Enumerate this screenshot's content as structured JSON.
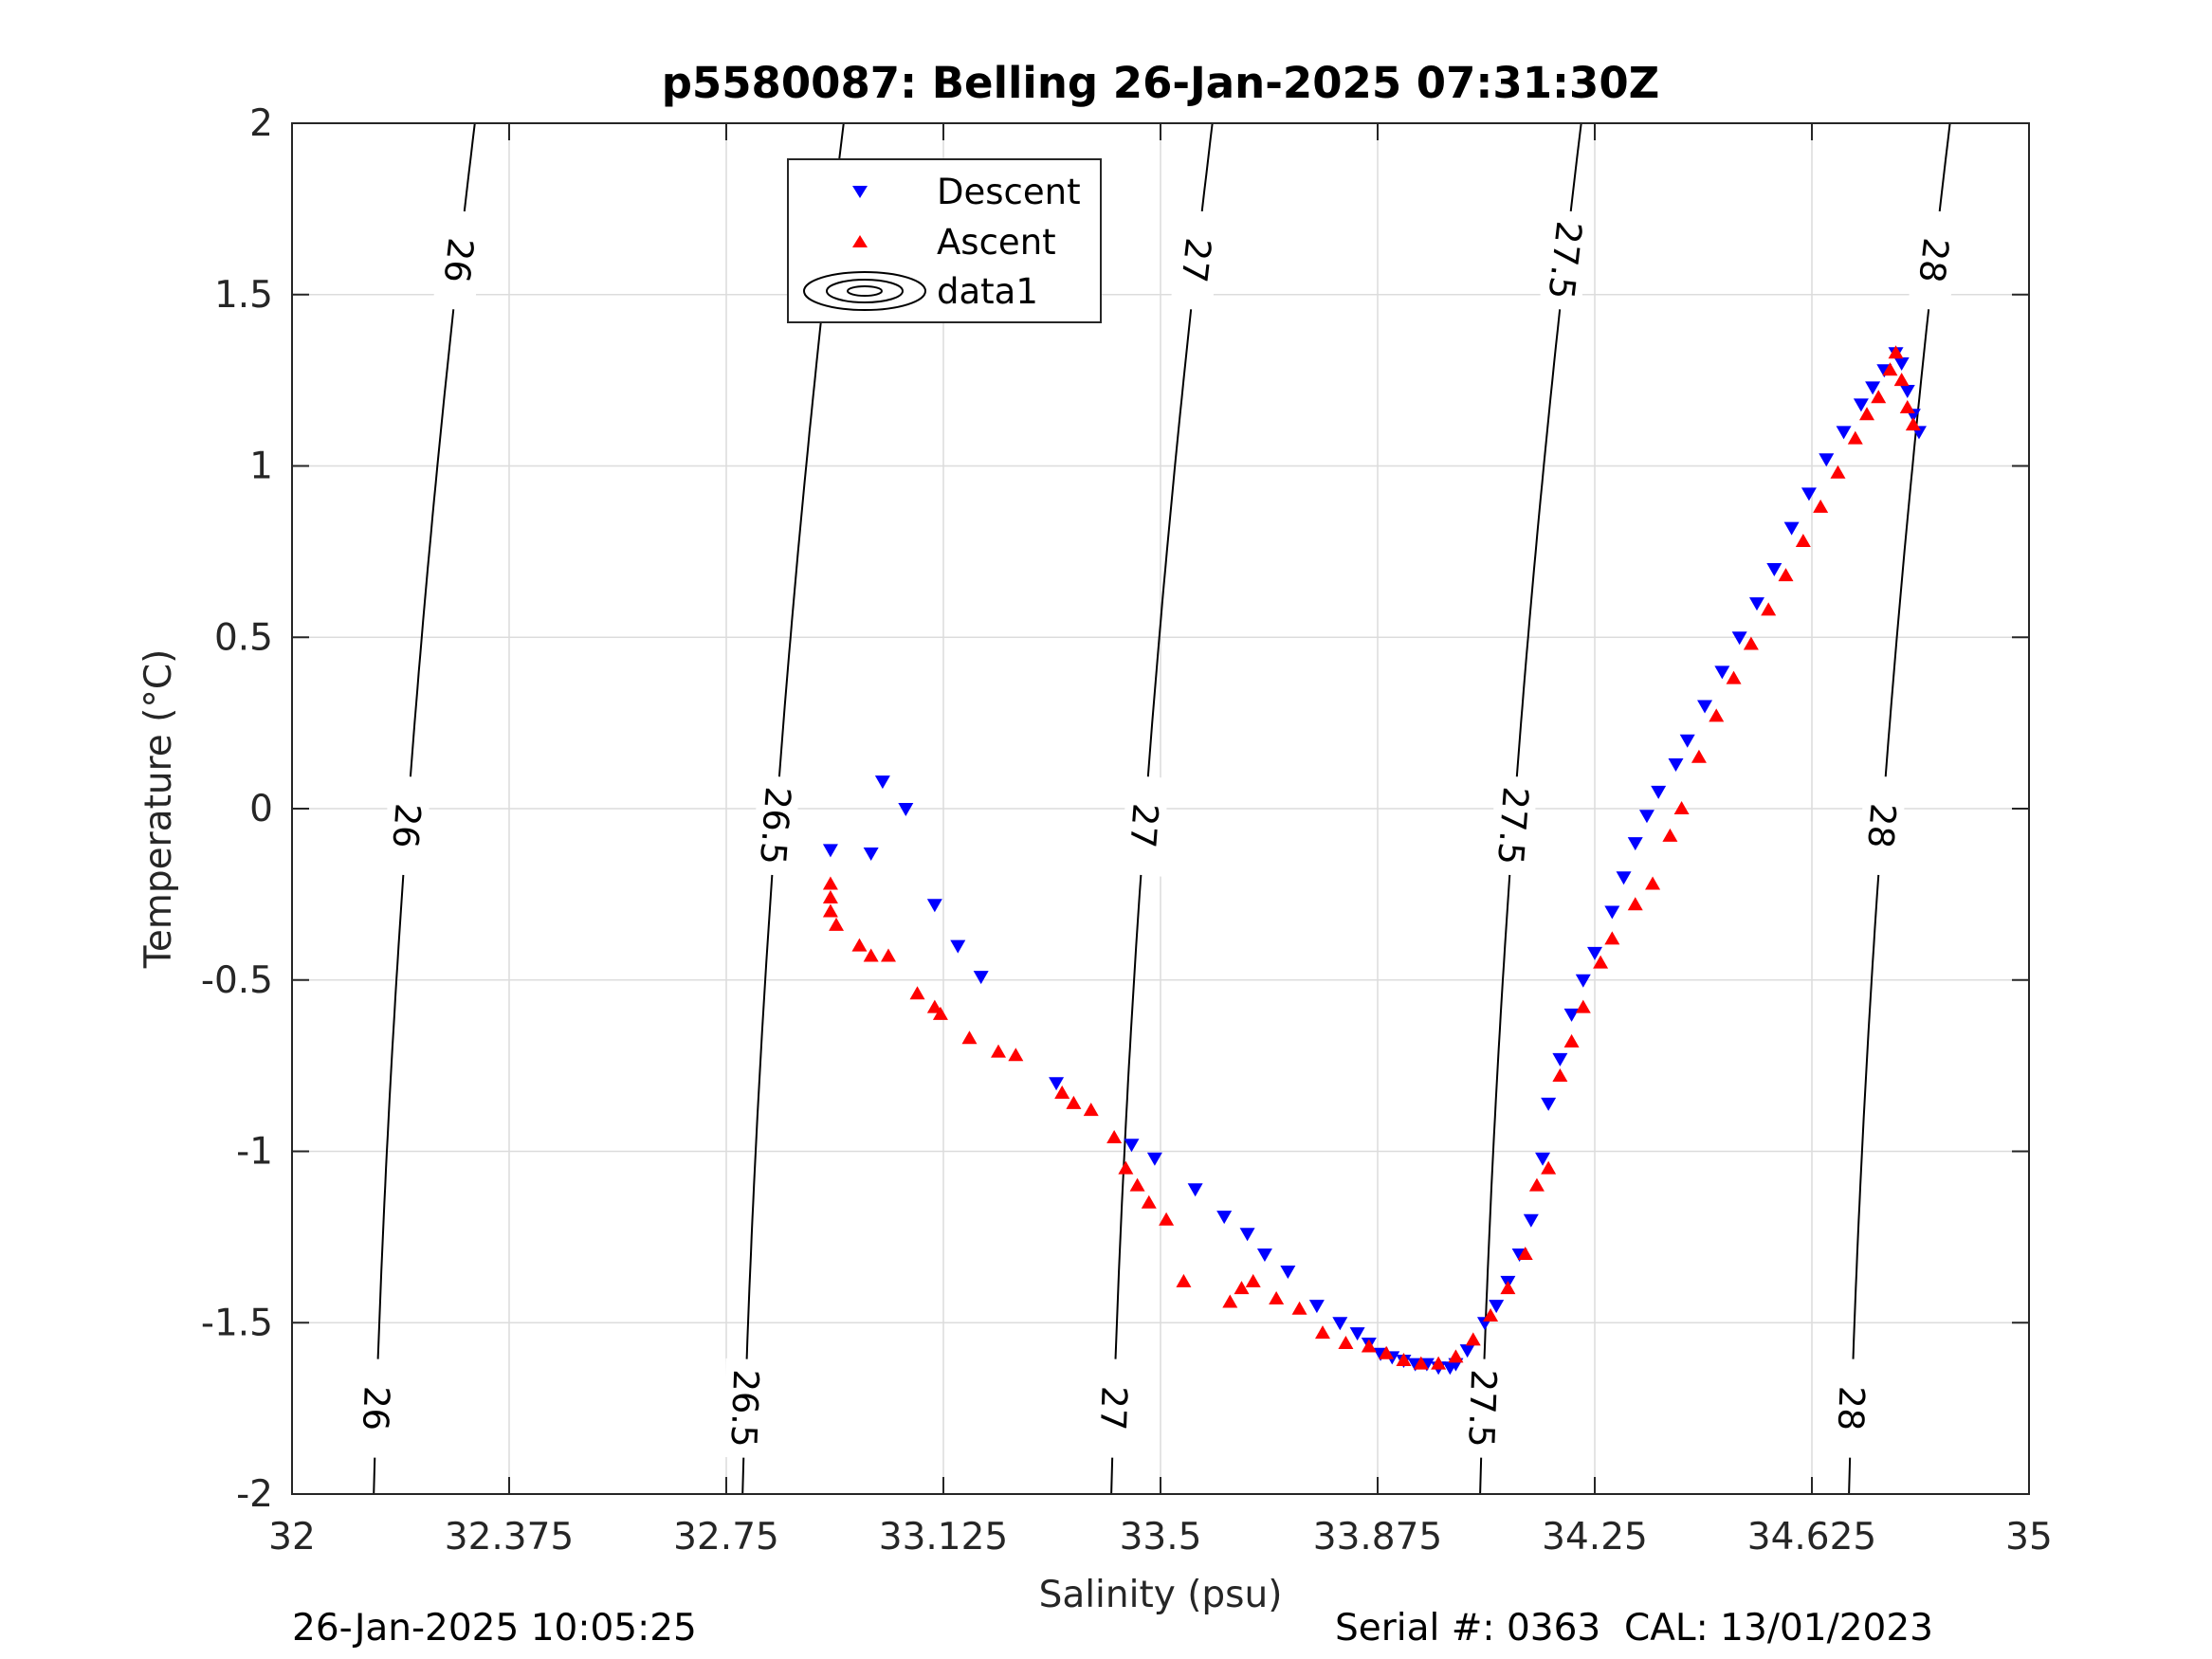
{
  "chart_data": {
    "type": "scatter",
    "title": "p5580087: Belling 26-Jan-2025 07:31:30Z",
    "xlabel": "Salinity (psu)",
    "ylabel": "Temperature (°C)",
    "xlim": [
      32,
      35
    ],
    "ylim": [
      -2,
      2
    ],
    "xticks": [
      32,
      32.375,
      32.75,
      33.125,
      33.5,
      33.875,
      34.25,
      34.625,
      35
    ],
    "xtick_labels": [
      "32",
      "32.375",
      "32.75",
      "33.125",
      "33.5",
      "33.875",
      "34.25",
      "34.625",
      "35"
    ],
    "yticks": [
      -2,
      -1.5,
      -1,
      -0.5,
      0,
      0.5,
      1,
      1.5,
      2
    ],
    "ytick_labels": [
      "-2",
      "-1.5",
      "-1",
      "-0.5",
      "0",
      "0.5",
      "1",
      "1.5",
      "2"
    ],
    "grid": true,
    "legend_position": "top-center",
    "legend": [
      "Descent",
      "Ascent",
      "data1"
    ],
    "series": [
      {
        "name": "Descent",
        "marker": "triangle-down",
        "color": "#0000ff",
        "points": [
          [
            32.93,
            -0.12
          ],
          [
            33.02,
            0.08
          ],
          [
            33.06,
            0.0
          ],
          [
            33.0,
            -0.13
          ],
          [
            33.11,
            -0.28
          ],
          [
            33.15,
            -0.4
          ],
          [
            33.19,
            -0.49
          ],
          [
            33.32,
            -0.8
          ],
          [
            33.45,
            -0.98
          ],
          [
            33.49,
            -1.02
          ],
          [
            33.56,
            -1.11
          ],
          [
            33.61,
            -1.19
          ],
          [
            33.65,
            -1.24
          ],
          [
            33.68,
            -1.3
          ],
          [
            33.72,
            -1.35
          ],
          [
            33.77,
            -1.45
          ],
          [
            33.81,
            -1.5
          ],
          [
            33.84,
            -1.53
          ],
          [
            33.86,
            -1.56
          ],
          [
            33.88,
            -1.59
          ],
          [
            33.9,
            -1.6
          ],
          [
            33.92,
            -1.61
          ],
          [
            33.94,
            -1.62
          ],
          [
            33.96,
            -1.62
          ],
          [
            33.98,
            -1.63
          ],
          [
            34.0,
            -1.63
          ],
          [
            34.01,
            -1.62
          ],
          [
            34.03,
            -1.58
          ],
          [
            34.06,
            -1.5
          ],
          [
            34.08,
            -1.45
          ],
          [
            34.1,
            -1.38
          ],
          [
            34.12,
            -1.3
          ],
          [
            34.14,
            -1.2
          ],
          [
            34.16,
            -1.02
          ],
          [
            34.17,
            -0.86
          ],
          [
            34.19,
            -0.73
          ],
          [
            34.21,
            -0.6
          ],
          [
            34.23,
            -0.5
          ],
          [
            34.25,
            -0.42
          ],
          [
            34.28,
            -0.3
          ],
          [
            34.3,
            -0.2
          ],
          [
            34.32,
            -0.1
          ],
          [
            34.34,
            -0.02
          ],
          [
            34.36,
            0.05
          ],
          [
            34.39,
            0.13
          ],
          [
            34.41,
            0.2
          ],
          [
            34.44,
            0.3
          ],
          [
            34.47,
            0.4
          ],
          [
            34.5,
            0.5
          ],
          [
            34.53,
            0.6
          ],
          [
            34.56,
            0.7
          ],
          [
            34.59,
            0.82
          ],
          [
            34.62,
            0.92
          ],
          [
            34.65,
            1.02
          ],
          [
            34.68,
            1.1
          ],
          [
            34.71,
            1.18
          ],
          [
            34.73,
            1.23
          ],
          [
            34.75,
            1.28
          ],
          [
            34.77,
            1.33
          ],
          [
            34.78,
            1.3
          ],
          [
            34.79,
            1.22
          ],
          [
            34.8,
            1.15
          ],
          [
            34.81,
            1.1
          ]
        ]
      },
      {
        "name": "Ascent",
        "marker": "triangle-up",
        "color": "#ff0000",
        "points": [
          [
            32.93,
            -0.22
          ],
          [
            32.93,
            -0.26
          ],
          [
            32.93,
            -0.3
          ],
          [
            32.94,
            -0.34
          ],
          [
            32.98,
            -0.4
          ],
          [
            33.0,
            -0.43
          ],
          [
            33.03,
            -0.43
          ],
          [
            33.08,
            -0.54
          ],
          [
            33.11,
            -0.58
          ],
          [
            33.12,
            -0.6
          ],
          [
            33.17,
            -0.67
          ],
          [
            33.22,
            -0.71
          ],
          [
            33.25,
            -0.72
          ],
          [
            33.33,
            -0.83
          ],
          [
            33.35,
            -0.86
          ],
          [
            33.38,
            -0.88
          ],
          [
            33.42,
            -0.96
          ],
          [
            33.44,
            -1.05
          ],
          [
            33.46,
            -1.1
          ],
          [
            33.48,
            -1.15
          ],
          [
            33.51,
            -1.2
          ],
          [
            33.54,
            -1.38
          ],
          [
            33.62,
            -1.44
          ],
          [
            33.64,
            -1.4
          ],
          [
            33.66,
            -1.38
          ],
          [
            33.7,
            -1.43
          ],
          [
            33.74,
            -1.46
          ],
          [
            33.78,
            -1.53
          ],
          [
            33.82,
            -1.56
          ],
          [
            33.86,
            -1.57
          ],
          [
            33.89,
            -1.59
          ],
          [
            33.92,
            -1.61
          ],
          [
            33.95,
            -1.62
          ],
          [
            33.98,
            -1.62
          ],
          [
            34.01,
            -1.6
          ],
          [
            34.04,
            -1.55
          ],
          [
            34.07,
            -1.48
          ],
          [
            34.1,
            -1.4
          ],
          [
            34.13,
            -1.3
          ],
          [
            34.15,
            -1.1
          ],
          [
            34.17,
            -1.05
          ],
          [
            34.19,
            -0.78
          ],
          [
            34.21,
            -0.68
          ],
          [
            34.23,
            -0.58
          ],
          [
            34.26,
            -0.45
          ],
          [
            34.28,
            -0.38
          ],
          [
            34.32,
            -0.28
          ],
          [
            34.35,
            -0.22
          ],
          [
            34.38,
            -0.08
          ],
          [
            34.4,
            0.0
          ],
          [
            34.43,
            0.15
          ],
          [
            34.46,
            0.27
          ],
          [
            34.49,
            0.38
          ],
          [
            34.52,
            0.48
          ],
          [
            34.55,
            0.58
          ],
          [
            34.58,
            0.68
          ],
          [
            34.61,
            0.78
          ],
          [
            34.64,
            0.88
          ],
          [
            34.67,
            0.98
          ],
          [
            34.7,
            1.08
          ],
          [
            34.72,
            1.15
          ],
          [
            34.74,
            1.2
          ],
          [
            34.76,
            1.28
          ],
          [
            34.77,
            1.33
          ],
          [
            34.78,
            1.25
          ],
          [
            34.79,
            1.17
          ],
          [
            34.8,
            1.12
          ]
        ]
      }
    ],
    "contours": {
      "name": "data1",
      "levels": [
        26,
        26.5,
        27,
        27.5,
        28
      ],
      "labels": [
        "26",
        "26.5",
        "27",
        "27.5",
        "28"
      ]
    }
  },
  "footer": {
    "timestamp": "26-Jan-2025 10:05:25",
    "serial": "Serial #: 0363  CAL: 13/01/2023"
  }
}
